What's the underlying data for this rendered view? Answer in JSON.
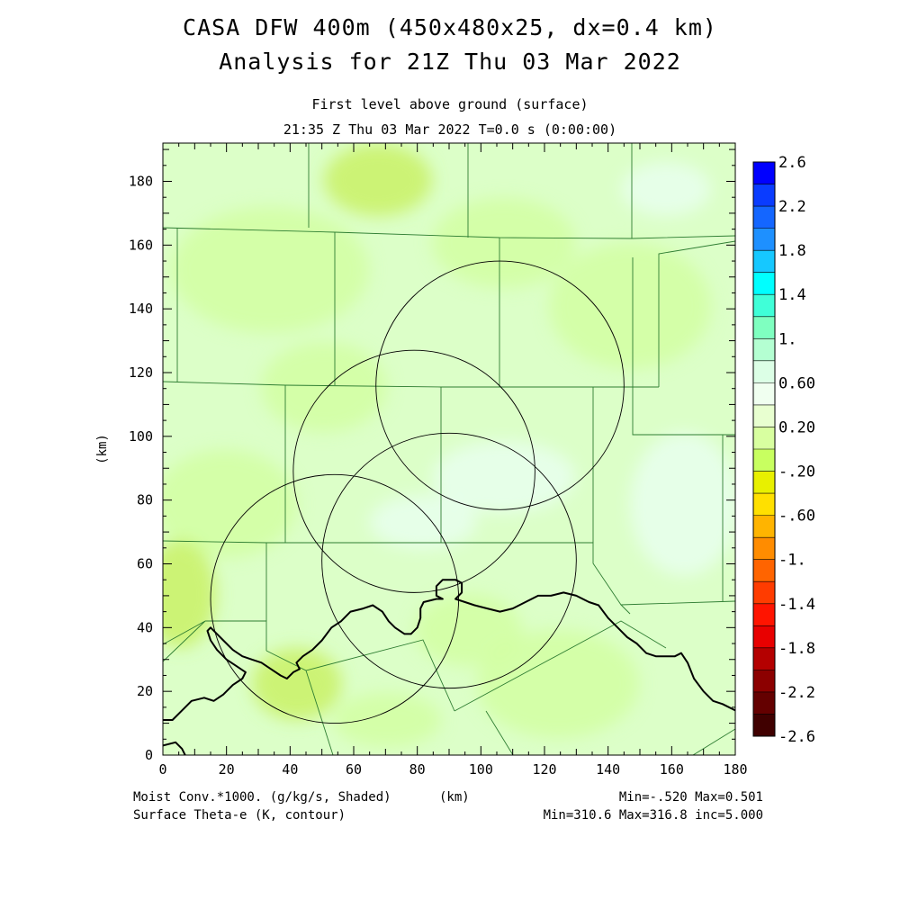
{
  "title": {
    "line1": "CASA DFW 400m (450x480x25, dx=0.4 km)",
    "line2": "Analysis for 21Z Thu 03 Mar 2022"
  },
  "subtitle": {
    "line1": "First level above ground (surface)",
    "line2": "21:35 Z Thu 03 Mar 2022   T=0.0 s (0:00:00)"
  },
  "axes": {
    "x_ticks": [
      "0",
      "20",
      "40",
      "60",
      "80",
      "100",
      "120",
      "140",
      "160",
      "180"
    ],
    "y_ticks": [
      "0",
      "20",
      "40",
      "60",
      "80",
      "100",
      "120",
      "140",
      "160",
      "180"
    ],
    "x_range": [
      0,
      180
    ],
    "y_range": [
      0,
      192
    ],
    "y_label": "(km)",
    "x_label": "(km)"
  },
  "colorbar": {
    "labels": [
      "2.6",
      "2.2",
      "1.8",
      "1.4",
      "1.",
      "0.60",
      "0.20",
      "-.20",
      "-.60",
      "-1.",
      "-1.4",
      "-1.8",
      "-2.2",
      "-2.6"
    ],
    "colors": [
      "#0000ff",
      "#0a3cff",
      "#1466ff",
      "#1e90ff",
      "#16c8ff",
      "#00ffff",
      "#40ffd8",
      "#7fffc0",
      "#b4ffd2",
      "#dcffe6",
      "#f0fff0",
      "#e8ffd0",
      "#d8ffa0",
      "#c8ff60",
      "#e8f000",
      "#ffe000",
      "#ffb400",
      "#ff8c00",
      "#ff6400",
      "#ff3c00",
      "#ff1400",
      "#e80000",
      "#b40000",
      "#8c0000",
      "#640000",
      "#400000"
    ]
  },
  "footer": {
    "left1": "Moist Conv.*1000. (g/kg/s, Shaded)",
    "left1_unit": "(km)",
    "left2": "Surface Theta-e (K, contour)",
    "right1": "Min=-.520 Max=0.501",
    "right2": "Min=310.6 Max=316.8 inc=5.000"
  },
  "map": {
    "field_colors": {
      "light": "#dcffc8",
      "mid": "#d2ffa0",
      "yellow": "#c8f060",
      "pale": "#e8fff0"
    },
    "county_line_color": "#2e7d32",
    "radar_rings_km": [
      {
        "cx": 106,
        "cy": 116,
        "r": 39
      },
      {
        "cx": 79,
        "cy": 89,
        "r": 38
      },
      {
        "cx": 90,
        "cy": 61,
        "r": 40
      },
      {
        "cx": 54,
        "cy": 49,
        "r": 39
      }
    ],
    "contour_km": [
      [
        0,
        11
      ],
      [
        3,
        11
      ],
      [
        6,
        14
      ],
      [
        9,
        17
      ],
      [
        13,
        18
      ],
      [
        16,
        17
      ],
      [
        19,
        19
      ],
      [
        22,
        22
      ],
      [
        25,
        24
      ],
      [
        26,
        26
      ],
      [
        23,
        28
      ],
      [
        20,
        30
      ],
      [
        17,
        33
      ],
      [
        15,
        36
      ],
      [
        14,
        39
      ],
      [
        15,
        40
      ],
      [
        17,
        38
      ],
      [
        19,
        36
      ],
      [
        22,
        33
      ],
      [
        25,
        31
      ],
      [
        28,
        30
      ],
      [
        31,
        29
      ],
      [
        34,
        27
      ],
      [
        37,
        25
      ],
      [
        39,
        24
      ],
      [
        41,
        26
      ],
      [
        43,
        27
      ],
      [
        42,
        29
      ],
      [
        44,
        31
      ],
      [
        47,
        33
      ],
      [
        50,
        36
      ],
      [
        53,
        40
      ],
      [
        56,
        42
      ],
      [
        59,
        45
      ],
      [
        63,
        46
      ],
      [
        66,
        47
      ],
      [
        69,
        45
      ],
      [
        71,
        42
      ],
      [
        73,
        40
      ],
      [
        76,
        38
      ],
      [
        78,
        38
      ],
      [
        80,
        40
      ],
      [
        81,
        43
      ],
      [
        81,
        46
      ],
      [
        82,
        48
      ],
      [
        86,
        49
      ],
      [
        88,
        49
      ],
      [
        86,
        50
      ],
      [
        86,
        53
      ],
      [
        88,
        55
      ],
      [
        92,
        55
      ],
      [
        94,
        54
      ],
      [
        94,
        51
      ],
      [
        92,
        49
      ],
      [
        95,
        48
      ],
      [
        98,
        47
      ],
      [
        102,
        46
      ],
      [
        106,
        45
      ],
      [
        110,
        46
      ],
      [
        114,
        48
      ],
      [
        118,
        50
      ],
      [
        122,
        50
      ],
      [
        126,
        51
      ],
      [
        130,
        50
      ],
      [
        134,
        48
      ],
      [
        137,
        47
      ],
      [
        140,
        43
      ],
      [
        143,
        40
      ],
      [
        146,
        37
      ],
      [
        149,
        35
      ],
      [
        152,
        32
      ],
      [
        155,
        31
      ],
      [
        158,
        31
      ],
      [
        161,
        31
      ],
      [
        163,
        32
      ],
      [
        165,
        29
      ],
      [
        167,
        24
      ],
      [
        170,
        20
      ],
      [
        173,
        17
      ],
      [
        176,
        16
      ],
      [
        180,
        14
      ]
    ],
    "contour2_km": [
      [
        0,
        3
      ],
      [
        4,
        4
      ],
      [
        6,
        2
      ],
      [
        7,
        0
      ]
    ]
  }
}
